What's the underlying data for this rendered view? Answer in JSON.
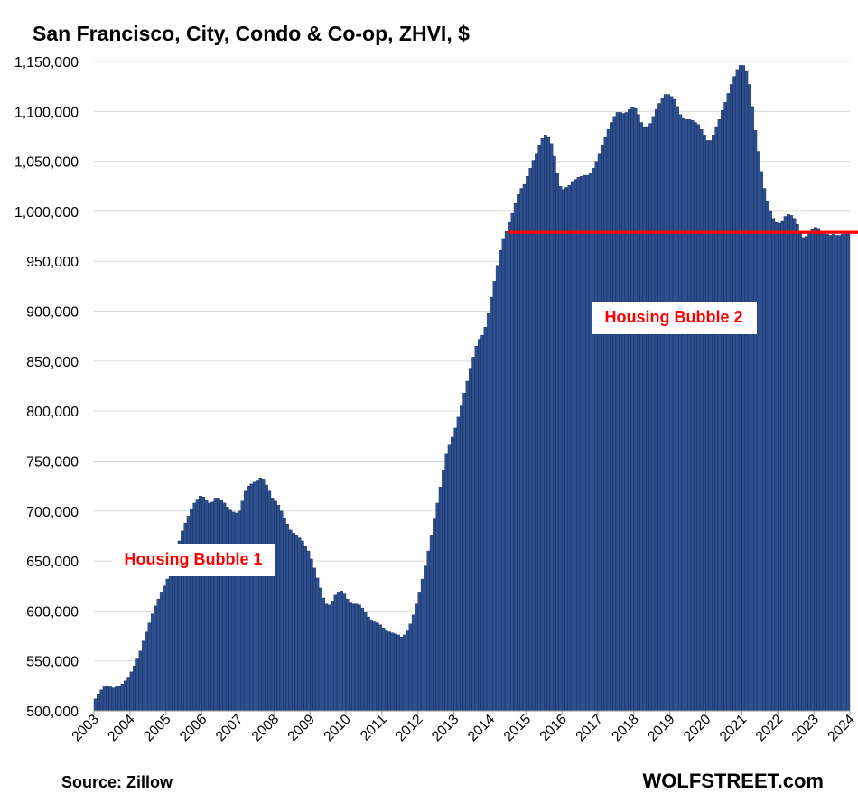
{
  "chart_data": {
    "type": "bar",
    "title": "San Francisco, City, Condo & Co-op, ZHVI, $",
    "xlabel": "",
    "ylabel": "",
    "ylim": [
      500000,
      1150000
    ],
    "y_ticks": [
      "500,000",
      "550,000",
      "600,000",
      "650,000",
      "700,000",
      "750,000",
      "800,000",
      "850,000",
      "900,000",
      "950,000",
      "1,000,000",
      "1,050,000",
      "1,100,000",
      "1,150,000"
    ],
    "x_ticks": [
      "2003",
      "2004",
      "2005",
      "2006",
      "2007",
      "2008",
      "2009",
      "2010",
      "2011",
      "2012",
      "2013",
      "2014",
      "2015",
      "2016",
      "2017",
      "2018",
      "2019",
      "2020",
      "2021",
      "2022",
      "2023",
      "2024"
    ],
    "start": "2003-01",
    "frequency": "monthly",
    "bar_color": "#2e4f8f",
    "reference_line": {
      "value": 979000,
      "start": "2014-07",
      "color": "#ff0000"
    },
    "annotations": [
      {
        "text": "Housing Bubble 1",
        "color": "#ff0000"
      },
      {
        "text": "Housing Bubble 2",
        "color": "#ff0000"
      }
    ],
    "values": [
      512000,
      517000,
      521000,
      525000,
      525000,
      524000,
      523000,
      524000,
      525000,
      527000,
      530000,
      533000,
      539000,
      545000,
      552000,
      560000,
      570000,
      579000,
      588000,
      597000,
      605000,
      612000,
      619000,
      625000,
      632000,
      640000,
      650000,
      660000,
      670000,
      680000,
      688000,
      695000,
      702000,
      708000,
      712000,
      715000,
      714000,
      711000,
      708000,
      709000,
      713000,
      713000,
      711000,
      708000,
      704000,
      701000,
      699000,
      698000,
      700000,
      710000,
      720000,
      725000,
      727000,
      729000,
      731000,
      733000,
      732000,
      726000,
      720000,
      713000,
      710000,
      706000,
      700000,
      693000,
      687000,
      681000,
      678000,
      676000,
      673000,
      670000,
      665000,
      660000,
      652000,
      643000,
      633000,
      623000,
      613000,
      607000,
      606000,
      610000,
      616000,
      619000,
      620000,
      617000,
      612000,
      608000,
      607000,
      607000,
      606000,
      603000,
      599000,
      594000,
      591000,
      589000,
      588000,
      586000,
      583000,
      580000,
      579000,
      578000,
      577000,
      576000,
      574000,
      576000,
      580000,
      587000,
      596000,
      607000,
      619000,
      632000,
      645000,
      660000,
      676000,
      692000,
      708000,
      724000,
      741000,
      757000,
      766000,
      774000,
      783000,
      794000,
      806000,
      818000,
      830000,
      843000,
      854000,
      865000,
      872000,
      876000,
      884000,
      898000,
      914000,
      930000,
      946000,
      961000,
      972000,
      980000,
      989000,
      998000,
      1008000,
      1017000,
      1023000,
      1027000,
      1035000,
      1043000,
      1051000,
      1058000,
      1066000,
      1073000,
      1076000,
      1074000,
      1068000,
      1055000,
      1038000,
      1025000,
      1022000,
      1024000,
      1026000,
      1030000,
      1032000,
      1034000,
      1035000,
      1036000,
      1036000,
      1038000,
      1043000,
      1050000,
      1058000,
      1066000,
      1074000,
      1082000,
      1089000,
      1095000,
      1099000,
      1099000,
      1098000,
      1099000,
      1102000,
      1104000,
      1103000,
      1097000,
      1089000,
      1084000,
      1084000,
      1088000,
      1095000,
      1102000,
      1108000,
      1113000,
      1117000,
      1117000,
      1115000,
      1112000,
      1105000,
      1097000,
      1093000,
      1092000,
      1092000,
      1091000,
      1089000,
      1087000,
      1082000,
      1076000,
      1071000,
      1071000,
      1076000,
      1084000,
      1092000,
      1101000,
      1109000,
      1118000,
      1127000,
      1135000,
      1142000,
      1146000,
      1146000,
      1140000,
      1127000,
      1105000,
      1081000,
      1060000,
      1040000,
      1023000,
      1010000,
      1000000,
      993000,
      989000,
      988000,
      990000,
      995000,
      997000,
      996000,
      993000,
      987000,
      980000,
      974000,
      975000,
      978000,
      982000,
      984000,
      983000,
      980000,
      978000,
      977000,
      976000,
      977000,
      976000,
      976000,
      977000,
      979000,
      978000
    ]
  }
}
